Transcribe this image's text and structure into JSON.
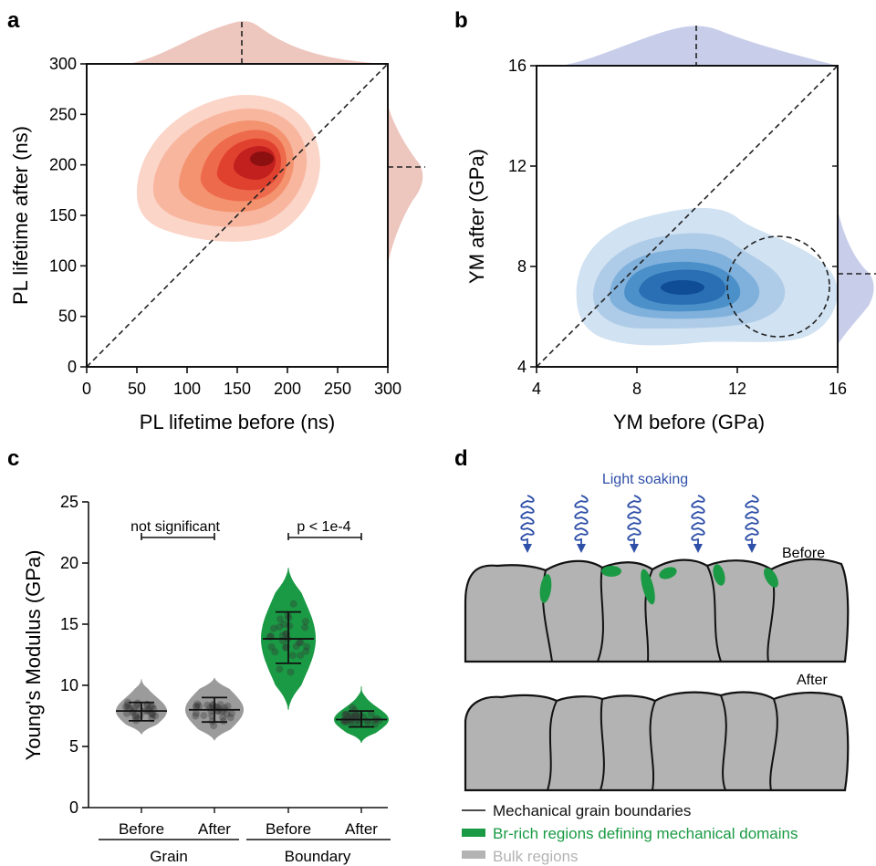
{
  "chart_data": [
    {
      "panel": "a",
      "type": "heatmap",
      "xlabel": "PL lifetime before (ns)",
      "ylabel": "PL lifetime after (ns)",
      "xlim": [
        0,
        300
      ],
      "ylim": [
        0,
        300
      ],
      "xticks": [
        0,
        50,
        100,
        150,
        200,
        250,
        300
      ],
      "yticks": [
        0,
        50,
        100,
        150,
        200,
        250,
        300
      ],
      "density_peak": {
        "x": 172,
        "y": 207
      },
      "marginal_median_x": 152,
      "marginal_median_y": 197,
      "identity_line": true,
      "colors": [
        "#fbd5c8",
        "#f8b69f",
        "#f4936f",
        "#ee6a4c",
        "#e0412f",
        "#c21f1f",
        "#8c1010"
      ]
    },
    {
      "panel": "b",
      "type": "heatmap",
      "xlabel": "YM before (GPa)",
      "ylabel": "YM after (GPa)",
      "xlim": [
        4,
        16
      ],
      "ylim": [
        4,
        16
      ],
      "xticks": [
        4,
        8,
        12,
        16
      ],
      "yticks": [
        4,
        8,
        12,
        16
      ],
      "density_peak": {
        "x": 9.8,
        "y": 7.1
      },
      "marginal_median_x": 10.2,
      "marginal_median_y": 7.6,
      "identity_line": true,
      "highlight_circle": {
        "cx": 13.3,
        "cy": 7.2
      },
      "colors": [
        "#d1e2f2",
        "#aecbe7",
        "#7fb1dc",
        "#4c90c9",
        "#2a6fb3",
        "#0f4d96"
      ]
    },
    {
      "panel": "c",
      "type": "violin",
      "ylabel": "Young's Modulus (GPa)",
      "ylim": [
        0,
        25
      ],
      "yticks": [
        0,
        5,
        10,
        15,
        20,
        25
      ],
      "categories": [
        "Before",
        "After",
        "Before",
        "After"
      ],
      "groups": [
        "Grain",
        "Boundary"
      ],
      "series": [
        {
          "group": "Grain",
          "condition": "Before",
          "color": "#9b9b9b",
          "mean": 7.9,
          "q_low": 7.1,
          "q_high": 8.6,
          "range": [
            6.0,
            10.5
          ]
        },
        {
          "group": "Grain",
          "condition": "After",
          "color": "#9b9b9b",
          "mean": 8.0,
          "q_low": 7.0,
          "q_high": 9.0,
          "range": [
            5.5,
            10.6
          ]
        },
        {
          "group": "Boundary",
          "condition": "Before",
          "color": "#1a9a44",
          "mean": 13.8,
          "q_low": 11.8,
          "q_high": 16.0,
          "range": [
            8.0,
            19.6
          ]
        },
        {
          "group": "Boundary",
          "condition": "After",
          "color": "#1a9a44",
          "mean": 7.2,
          "q_low": 6.6,
          "q_high": 7.9,
          "range": [
            5.3,
            9.9
          ]
        }
      ],
      "annotations": [
        "not significant",
        "p < 1e-4"
      ]
    }
  ],
  "panels": {
    "a": "a",
    "b": "b",
    "c": "c",
    "d": "d"
  },
  "schematic": {
    "light_label": "Light soaking",
    "before_label": "Before",
    "after_label": "After",
    "legend": [
      {
        "label": "Mechanical grain boundaries",
        "color": "#111111"
      },
      {
        "label": "Br-rich regions defining mechanical domains",
        "color": "#1a9a44"
      },
      {
        "label": "Bulk regions",
        "color": "#b3b3b3"
      }
    ]
  }
}
